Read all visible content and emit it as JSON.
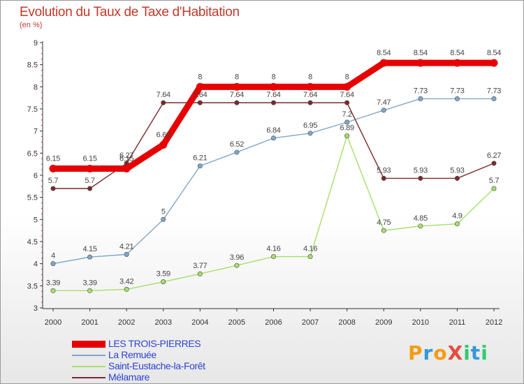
{
  "title": "Evolution du Taux de Taxe d'Habitation",
  "unit_label": "(en %)",
  "logo_text": "ProXiti",
  "chart_data": {
    "type": "line",
    "title": "Evolution du Taux de Taxe d'Habitation",
    "ylabel": "(en %)",
    "xlabel": "",
    "ylim": [
      3,
      9
    ],
    "yticks": [
      "3",
      "3.5",
      "4",
      "4.5",
      "5",
      "5.5",
      "6",
      "6.5",
      "7",
      "7.5",
      "8",
      "8.5",
      "9"
    ],
    "x": [
      "2000",
      "2001",
      "2002",
      "2003",
      "2004",
      "2005",
      "2006",
      "2007",
      "2008",
      "2009",
      "2010",
      "2011",
      "2012"
    ],
    "grid": false,
    "legend_position": "bottom-left",
    "series": [
      {
        "name": "LES TROIS-PIERRES",
        "color": "#e60000",
        "values": [
          6.15,
          6.15,
          6.15,
          6.69,
          8,
          8,
          8,
          8,
          8,
          8.54,
          8.54,
          8.54,
          8.54
        ],
        "labels": [
          "6.15",
          "6.15",
          "6.15",
          "6.69",
          "8",
          "8",
          "8",
          "8",
          "8",
          "8.54",
          "8.54",
          "8.54",
          "8.54"
        ]
      },
      {
        "name": "La Remuée",
        "color": "#7fa7cc",
        "values": [
          4,
          4.15,
          4.21,
          5,
          6.21,
          6.52,
          6.84,
          6.95,
          7.2,
          7.47,
          7.73,
          7.73,
          7.73
        ],
        "labels": [
          "4",
          "4.15",
          "4.21",
          "5",
          "6.21",
          "6.52",
          "6.84",
          "6.95",
          "7.2",
          "7.47",
          "7.73",
          "7.73",
          "7.73"
        ]
      },
      {
        "name": "Saint-Eustache-la-Forêt",
        "color": "#a6df6a",
        "values": [
          3.39,
          3.39,
          3.42,
          3.59,
          3.77,
          3.96,
          4.16,
          4.16,
          6.89,
          4.75,
          4.85,
          4.9,
          5.7
        ],
        "labels": [
          "3.39",
          "3.39",
          "3.42",
          "3.59",
          "3.77",
          "3.96",
          "4.16",
          "4.16",
          "6.89",
          "4.75",
          "4.85",
          "4.9",
          "5.7"
        ]
      },
      {
        "name": "Mélamare",
        "color": "#7a2a2a",
        "values": [
          5.7,
          5.7,
          6.27,
          7.64,
          7.64,
          7.64,
          7.64,
          7.64,
          7.64,
          5.93,
          5.93,
          5.93,
          6.27
        ],
        "labels": [
          "5.7",
          "5.7",
          "6.27",
          "7.64",
          "7.64",
          "7.64",
          "7.64",
          "7.64",
          "7.64",
          "5.93",
          "5.93",
          "5.93",
          "6.27"
        ]
      }
    ]
  }
}
